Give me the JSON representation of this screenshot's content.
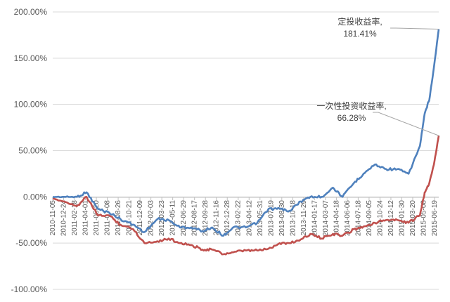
{
  "chart_data": {
    "type": "line",
    "title": "",
    "xlabel": "",
    "ylabel": "",
    "ylim": [
      -1.0,
      2.0
    ],
    "yticks": [
      -1.0,
      -0.5,
      0.0,
      0.5,
      1.0,
      1.5,
      2.0
    ],
    "ytick_labels": [
      "-100.00%",
      "-50.00%",
      "0.00%",
      "50.00%",
      "100.00%",
      "150.00%",
      "200.00%"
    ],
    "grid": "horizontal",
    "x_tick_labels": [
      "2010-11-05",
      "2010-12-24",
      "2011-02-18",
      "2011-04-01",
      "2011-05-20",
      "2011-07-08",
      "2011-08-26",
      "2011-10-21",
      "2011-12-09",
      "2012-02-03",
      "2012-03-23",
      "2012-05-11",
      "2012-06-29",
      "2012-08-17",
      "2012-09-28",
      "2012-11-16",
      "2012-12-28",
      "2013-02-22",
      "2013-04-12",
      "2013-05-31",
      "2013-07-19",
      "2013-08-30",
      "2013-10-18",
      "2013-11-29",
      "2014-01-17",
      "2014-03-07",
      "2014-04-18",
      "2014-06-06",
      "2014-07-18",
      "2014-09-05",
      "2014-10-24",
      "2014-12-12",
      "2015-01-30",
      "2015-03-20",
      "2015-05-08",
      "2015-06-19"
    ],
    "x": [
      "2010-11-05",
      "2010-12-24",
      "2011-02-18",
      "2011-04-01",
      "2011-05-20",
      "2011-07-08",
      "2011-08-26",
      "2011-10-21",
      "2011-12-09",
      "2012-02-03",
      "2012-03-23",
      "2012-05-11",
      "2012-06-29",
      "2012-08-17",
      "2012-09-28",
      "2012-11-16",
      "2012-12-28",
      "2013-02-22",
      "2013-04-12",
      "2013-05-31",
      "2013-07-19",
      "2013-08-30",
      "2013-10-18",
      "2013-11-29",
      "2014-01-17",
      "2014-03-07",
      "2014-04-18",
      "2014-06-06",
      "2014-07-18",
      "2014-09-05",
      "2014-10-24",
      "2014-12-12",
      "2015-01-30",
      "2015-03-20",
      "2015-04-10",
      "2015-04-30",
      "2015-05-20",
      "2015-06-10"
    ],
    "series": [
      {
        "name": "定投收益率",
        "color": "#4f81bd",
        "values": [
          0.0,
          0.0,
          0.0,
          0.05,
          -0.13,
          -0.17,
          -0.24,
          -0.3,
          -0.38,
          -0.24,
          -0.25,
          -0.33,
          -0.33,
          -0.37,
          -0.33,
          -0.42,
          -0.33,
          -0.33,
          -0.28,
          -0.13,
          -0.13,
          -0.15,
          -0.05,
          0.0,
          0.0,
          0.1,
          0.0,
          0.15,
          0.25,
          0.35,
          0.3,
          0.3,
          0.25,
          0.55,
          0.9,
          1.05,
          1.4,
          1.8141
        ]
      },
      {
        "name": "一次性投资收益率",
        "color": "#c0504d",
        "values": [
          -0.02,
          -0.05,
          -0.1,
          0.0,
          -0.2,
          -0.2,
          -0.3,
          -0.35,
          -0.5,
          -0.48,
          -0.45,
          -0.5,
          -0.52,
          -0.57,
          -0.57,
          -0.62,
          -0.6,
          -0.58,
          -0.58,
          -0.56,
          -0.5,
          -0.5,
          -0.46,
          -0.4,
          -0.45,
          -0.4,
          -0.42,
          -0.35,
          -0.32,
          -0.28,
          -0.25,
          -0.25,
          -0.28,
          -0.2,
          0.05,
          0.15,
          0.35,
          0.6628
        ]
      }
    ],
    "annotations": [
      {
        "text": "定投收益率,",
        "value_text": "181.41%",
        "series": 0
      },
      {
        "text": "一次性投资收益率,",
        "value_text": "66.28%",
        "series": 1
      }
    ]
  }
}
